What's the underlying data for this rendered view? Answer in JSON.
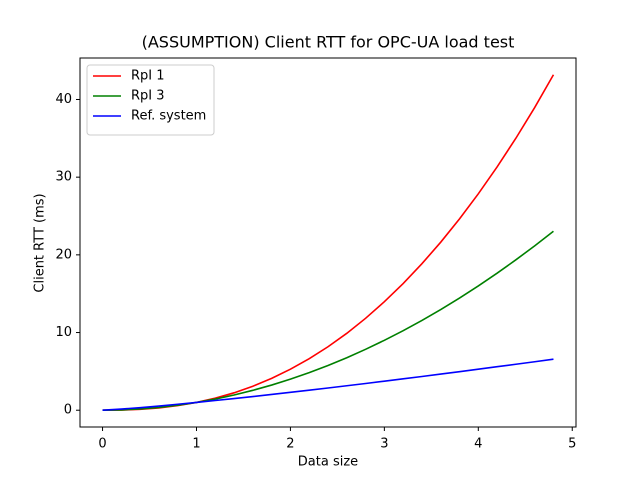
{
  "chart_data": {
    "type": "line",
    "title": "(ASSUMPTION) Client RTT for OPC-UA load test",
    "x_label": "Data size",
    "y_label": "Client RTT (ms)",
    "x": [
      0,
      0.2,
      0.4,
      0.6,
      0.8,
      1,
      1.2,
      1.4,
      1.6,
      1.8,
      2,
      2.2,
      2.4,
      2.6,
      2.8,
      3,
      3.2,
      3.4,
      3.6,
      3.8,
      4,
      4.2,
      4.4,
      4.6,
      4.8
    ],
    "series": [
      {
        "name": "RpI 1",
        "color": "#ff0000",
        "values": [
          0,
          0.02,
          0.11,
          0.29,
          0.59,
          1,
          1.55,
          2.24,
          3.09,
          4.1,
          5.28,
          6.64,
          8.17,
          9.9,
          11.83,
          13.97,
          16.31,
          18.86,
          21.63,
          24.63,
          27.86,
          31.32,
          35.01,
          38.96,
          43.18
        ]
      },
      {
        "name": "RpI 3",
        "color": "#008000",
        "values": [
          0,
          0.04,
          0.16,
          0.36,
          0.64,
          1,
          1.44,
          1.96,
          2.56,
          3.24,
          4,
          4.84,
          5.76,
          6.76,
          7.84,
          9,
          10.24,
          11.56,
          12.96,
          14.44,
          16,
          17.64,
          19.36,
          21.16,
          23.04
        ]
      },
      {
        "name": "Ref. system",
        "color": "#0000ff",
        "values": [
          0,
          0.15,
          0.33,
          0.54,
          0.77,
          1,
          1.25,
          1.5,
          1.76,
          2.03,
          2.3,
          2.58,
          2.86,
          3.15,
          3.44,
          3.74,
          4.04,
          4.34,
          4.65,
          4.96,
          5.28,
          5.6,
          5.92,
          6.24,
          6.57
        ]
      }
    ],
    "xlim": [
      -0.24,
      5.04
    ],
    "xticks": [
      0,
      1,
      2,
      3,
      4,
      5
    ],
    "ylim": [
      -2.16,
      45.34
    ],
    "yticks": [
      0,
      10,
      20,
      30,
      40
    ],
    "legend": "upper left"
  }
}
